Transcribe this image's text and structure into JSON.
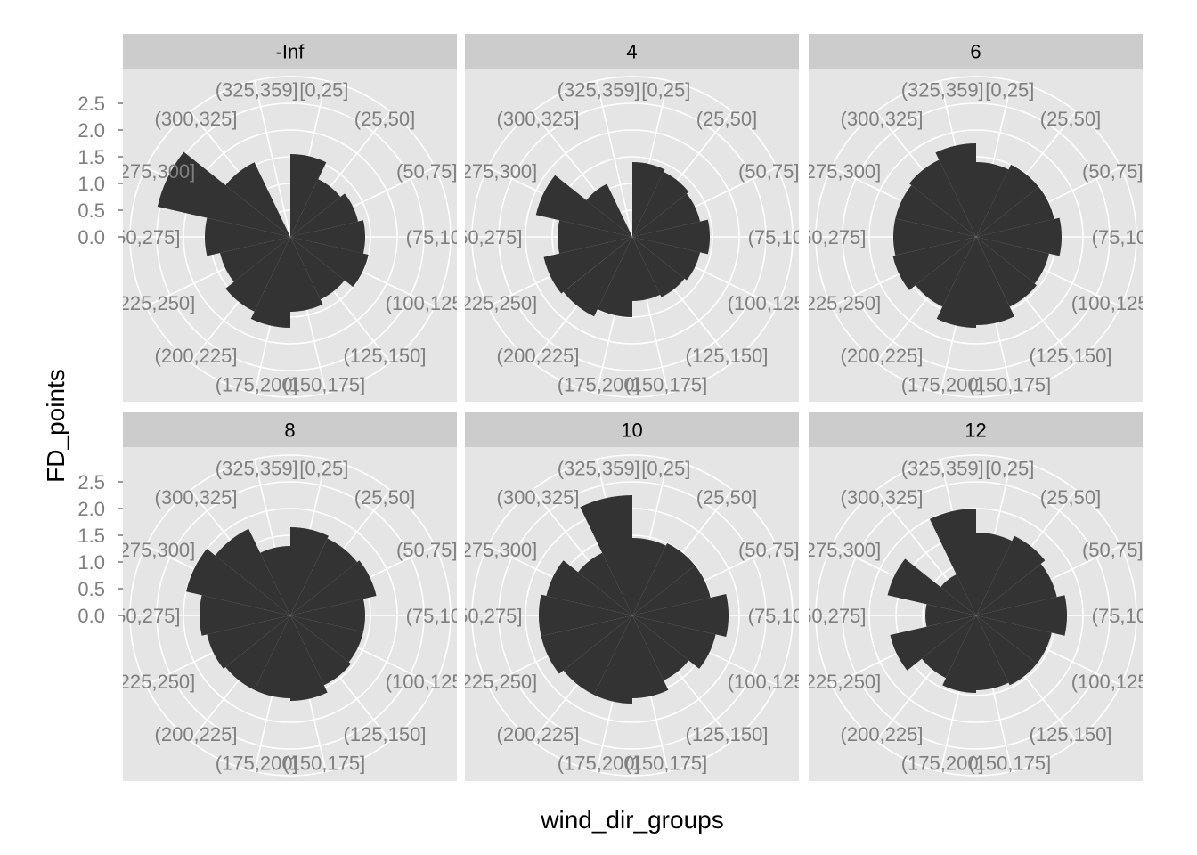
{
  "chart_data": {
    "type": "polar-bar",
    "xlabel": "wind_dir_groups",
    "ylabel": "FD_points",
    "yticks": [
      "0.0",
      "0.5",
      "1.0",
      "1.5",
      "2.0",
      "2.5"
    ],
    "ylim": [
      0,
      3
    ],
    "categories": [
      "[0,25]",
      "(25,50]",
      "(50,75]",
      "(75,100]",
      "(100,125]",
      "(125,150]",
      "(150,175]",
      "(175,200]",
      "(200,225]",
      "(225,250]",
      "(250,275]",
      "(275,300]",
      "(300,325]",
      "(325,359]"
    ],
    "facets": [
      {
        "name": "-Inf",
        "values": [
          1.55,
          1.2,
          1.3,
          1.4,
          1.5,
          1.3,
          1.4,
          1.7,
          1.55,
          1.35,
          1.6,
          2.55,
          1.55,
          0.0
        ]
      },
      {
        "name": "4",
        "values": [
          1.4,
          1.35,
          1.3,
          1.45,
          1.3,
          1.25,
          1.2,
          1.5,
          1.65,
          1.7,
          1.4,
          1.85,
          1.1,
          0.0
        ]
      },
      {
        "name": "6",
        "values": [
          1.4,
          1.5,
          1.5,
          1.6,
          1.4,
          1.45,
          1.65,
          1.7,
          1.45,
          1.6,
          1.55,
          1.55,
          1.6,
          1.75
        ]
      },
      {
        "name": "8",
        "values": [
          1.65,
          1.6,
          1.65,
          1.4,
          1.4,
          1.45,
          1.6,
          1.55,
          1.55,
          1.6,
          1.7,
          2.0,
          1.8,
          1.3
        ]
      },
      {
        "name": "10",
        "values": [
          1.45,
          1.5,
          1.5,
          1.8,
          1.6,
          1.35,
          1.55,
          1.65,
          1.65,
          1.75,
          1.75,
          1.65,
          1.3,
          2.25
        ]
      },
      {
        "name": "12",
        "values": [
          1.55,
          1.65,
          1.55,
          1.7,
          1.45,
          1.45,
          1.4,
          1.45,
          1.3,
          1.65,
          0.95,
          1.7,
          0.85,
          2.0
        ]
      }
    ]
  }
}
